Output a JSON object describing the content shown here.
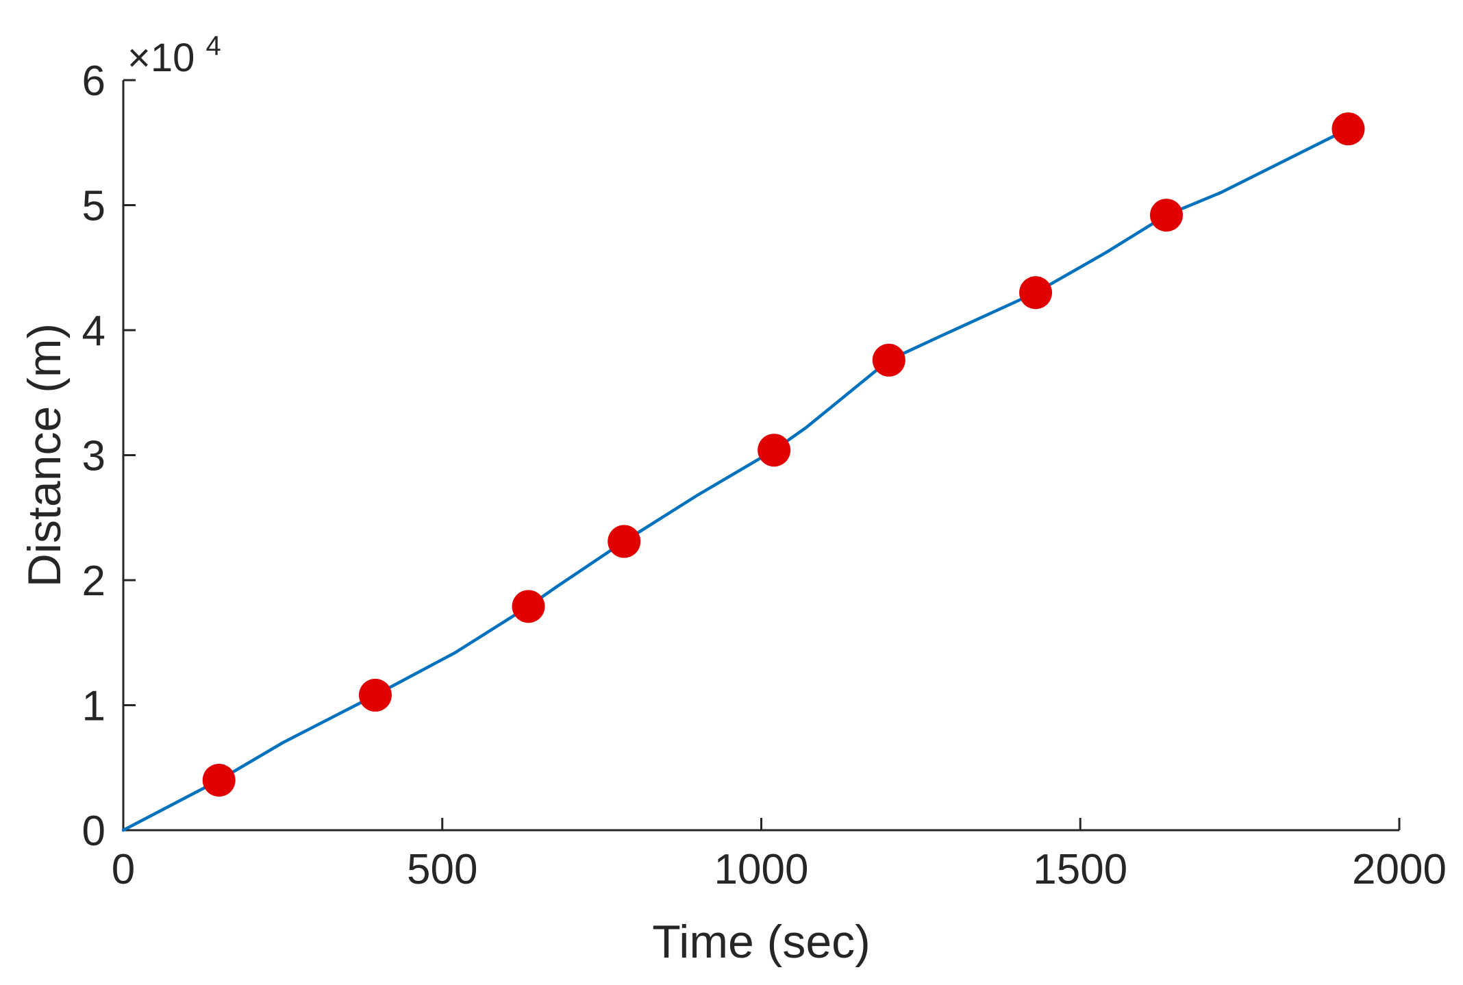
{
  "chart_data": {
    "type": "line",
    "title": "",
    "xlabel": "Time (sec)",
    "ylabel": "Distance (m)",
    "xlim": [
      0,
      2000
    ],
    "ylim": [
      0,
      60000
    ],
    "x_ticks": [
      0,
      500,
      1000,
      1500,
      2000
    ],
    "y_ticks": [
      0,
      10000,
      20000,
      30000,
      40000,
      50000,
      60000
    ],
    "x_tick_labels": [
      "0",
      "500",
      "1000",
      "1500",
      "2000"
    ],
    "y_tick_labels": [
      "0",
      "1",
      "2",
      "3",
      "4",
      "5",
      "6"
    ],
    "y_exponent_label": {
      "prefix": "×10",
      "exponent": "4"
    },
    "grid": false,
    "legend": "none",
    "series": [
      {
        "kind": "line",
        "color": "#0072BD",
        "x": [
          0,
          150,
          250,
          395,
          520,
          635,
          680,
          785,
          900,
          1020,
          1070,
          1200,
          1280,
          1430,
          1540,
          1635,
          1720,
          1920
        ],
        "y": [
          0,
          4000,
          7000,
          10800,
          14200,
          17900,
          19500,
          23100,
          26800,
          30400,
          32200,
          37600,
          39500,
          43000,
          46200,
          49200,
          51000,
          56100
        ]
      },
      {
        "kind": "markers",
        "color": "#E00000",
        "x": [
          150,
          395,
          635,
          785,
          1020,
          1200,
          1430,
          1635,
          1920
        ],
        "y": [
          4000,
          10800,
          17900,
          23100,
          30400,
          37600,
          43000,
          49200,
          56100
        ]
      }
    ]
  }
}
